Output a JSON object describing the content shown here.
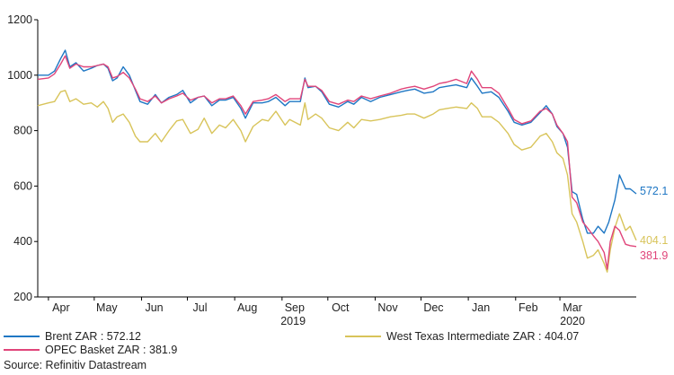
{
  "chart_data": {
    "type": "line",
    "ylim": [
      200,
      1200
    ],
    "yticks": [
      200,
      400,
      600,
      800,
      1000,
      1200
    ],
    "grid": false,
    "x_range": [
      "2019-03-25",
      "2020-04-20"
    ],
    "month_ticks": [
      {
        "label": "Apr",
        "date": "2019-04-01"
      },
      {
        "label": "May",
        "date": "2019-05-01"
      },
      {
        "label": "Jun",
        "date": "2019-06-01"
      },
      {
        "label": "Jul",
        "date": "2019-07-01"
      },
      {
        "label": "Aug",
        "date": "2019-08-01"
      },
      {
        "label": "Sep",
        "date": "2019-09-01"
      },
      {
        "label": "Oct",
        "date": "2019-10-01"
      },
      {
        "label": "Nov",
        "date": "2019-11-01"
      },
      {
        "label": "Dec",
        "date": "2019-12-01"
      },
      {
        "label": "Jan",
        "date": "2020-01-01"
      },
      {
        "label": "Feb",
        "date": "2020-02-01"
      },
      {
        "label": "Mar",
        "date": "2020-03-01"
      }
    ],
    "year_labels": [
      {
        "label": "2019",
        "date": "2019-08-31"
      },
      {
        "label": "2020",
        "date": "2020-03-01"
      }
    ],
    "series": [
      {
        "name": "Brent ZAR : 572.12",
        "end_label": "572.1",
        "color": "#1f77c4",
        "points": [
          [
            "2019-03-25",
            1000
          ],
          [
            "2019-04-01",
            1000
          ],
          [
            "2019-04-05",
            1015
          ],
          [
            "2019-04-09",
            1060
          ],
          [
            "2019-04-12",
            1090
          ],
          [
            "2019-04-15",
            1030
          ],
          [
            "2019-04-19",
            1045
          ],
          [
            "2019-04-24",
            1015
          ],
          [
            "2019-04-29",
            1025
          ],
          [
            "2019-05-03",
            1035
          ],
          [
            "2019-05-07",
            1040
          ],
          [
            "2019-05-10",
            1025
          ],
          [
            "2019-05-13",
            980
          ],
          [
            "2019-05-16",
            990
          ],
          [
            "2019-05-20",
            1030
          ],
          [
            "2019-05-24",
            1000
          ],
          [
            "2019-05-28",
            945
          ],
          [
            "2019-05-31",
            905
          ],
          [
            "2019-06-05",
            895
          ],
          [
            "2019-06-10",
            930
          ],
          [
            "2019-06-14",
            900
          ],
          [
            "2019-06-19",
            920
          ],
          [
            "2019-06-24",
            930
          ],
          [
            "2019-06-28",
            945
          ],
          [
            "2019-07-03",
            900
          ],
          [
            "2019-07-08",
            920
          ],
          [
            "2019-07-12",
            925
          ],
          [
            "2019-07-17",
            890
          ],
          [
            "2019-07-22",
            910
          ],
          [
            "2019-07-26",
            910
          ],
          [
            "2019-07-31",
            920
          ],
          [
            "2019-08-05",
            880
          ],
          [
            "2019-08-08",
            845
          ],
          [
            "2019-08-13",
            900
          ],
          [
            "2019-08-19",
            900
          ],
          [
            "2019-08-23",
            905
          ],
          [
            "2019-08-28",
            920
          ],
          [
            "2019-09-03",
            890
          ],
          [
            "2019-09-06",
            905
          ],
          [
            "2019-09-13",
            905
          ],
          [
            "2019-09-16",
            990
          ],
          [
            "2019-09-18",
            955
          ],
          [
            "2019-09-23",
            960
          ],
          [
            "2019-09-27",
            940
          ],
          [
            "2019-10-02",
            895
          ],
          [
            "2019-10-08",
            885
          ],
          [
            "2019-10-14",
            905
          ],
          [
            "2019-10-18",
            895
          ],
          [
            "2019-10-23",
            920
          ],
          [
            "2019-10-29",
            905
          ],
          [
            "2019-11-04",
            920
          ],
          [
            "2019-11-11",
            930
          ],
          [
            "2019-11-18",
            940
          ],
          [
            "2019-11-22",
            945
          ],
          [
            "2019-11-27",
            950
          ],
          [
            "2019-12-03",
            935
          ],
          [
            "2019-12-09",
            940
          ],
          [
            "2019-12-13",
            955
          ],
          [
            "2019-12-18",
            960
          ],
          [
            "2019-12-24",
            965
          ],
          [
            "2019-12-31",
            955
          ],
          [
            "2020-01-03",
            990
          ],
          [
            "2020-01-07",
            960
          ],
          [
            "2020-01-10",
            935
          ],
          [
            "2020-01-16",
            940
          ],
          [
            "2020-01-21",
            920
          ],
          [
            "2020-01-27",
            870
          ],
          [
            "2020-01-31",
            830
          ],
          [
            "2020-02-05",
            820
          ],
          [
            "2020-02-11",
            830
          ],
          [
            "2020-02-17",
            865
          ],
          [
            "2020-02-21",
            890
          ],
          [
            "2020-02-25",
            860
          ],
          [
            "2020-02-28",
            815
          ],
          [
            "2020-03-03",
            790
          ],
          [
            "2020-03-06",
            740
          ],
          [
            "2020-03-09",
            580
          ],
          [
            "2020-03-12",
            570
          ],
          [
            "2020-03-16",
            480
          ],
          [
            "2020-03-19",
            430
          ],
          [
            "2020-03-23",
            430
          ],
          [
            "2020-03-26",
            455
          ],
          [
            "2020-03-30",
            430
          ],
          [
            "2020-04-02",
            470
          ],
          [
            "2020-04-06",
            550
          ],
          [
            "2020-04-09",
            640
          ],
          [
            "2020-04-13",
            590
          ],
          [
            "2020-04-16",
            590
          ],
          [
            "2020-04-20",
            572.12
          ]
        ]
      },
      {
        "name": "OPEC Basket ZAR : 381.9",
        "end_label": "381.9",
        "color": "#e0457a",
        "points": [
          [
            "2019-03-25",
            985
          ],
          [
            "2019-04-01",
            990
          ],
          [
            "2019-04-05",
            1005
          ],
          [
            "2019-04-09",
            1040
          ],
          [
            "2019-04-12",
            1070
          ],
          [
            "2019-04-15",
            1025
          ],
          [
            "2019-04-19",
            1040
          ],
          [
            "2019-04-24",
            1030
          ],
          [
            "2019-04-29",
            1030
          ],
          [
            "2019-05-03",
            1035
          ],
          [
            "2019-05-07",
            1040
          ],
          [
            "2019-05-10",
            1030
          ],
          [
            "2019-05-13",
            990
          ],
          [
            "2019-05-16",
            995
          ],
          [
            "2019-05-20",
            1010
          ],
          [
            "2019-05-24",
            990
          ],
          [
            "2019-05-28",
            950
          ],
          [
            "2019-05-31",
            915
          ],
          [
            "2019-06-05",
            905
          ],
          [
            "2019-06-10",
            925
          ],
          [
            "2019-06-14",
            900
          ],
          [
            "2019-06-19",
            915
          ],
          [
            "2019-06-24",
            925
          ],
          [
            "2019-06-28",
            935
          ],
          [
            "2019-07-03",
            910
          ],
          [
            "2019-07-08",
            920
          ],
          [
            "2019-07-12",
            925
          ],
          [
            "2019-07-17",
            900
          ],
          [
            "2019-07-22",
            915
          ],
          [
            "2019-07-26",
            915
          ],
          [
            "2019-07-31",
            925
          ],
          [
            "2019-08-05",
            890
          ],
          [
            "2019-08-08",
            860
          ],
          [
            "2019-08-13",
            905
          ],
          [
            "2019-08-19",
            910
          ],
          [
            "2019-08-23",
            915
          ],
          [
            "2019-08-28",
            930
          ],
          [
            "2019-09-03",
            905
          ],
          [
            "2019-09-06",
            915
          ],
          [
            "2019-09-13",
            915
          ],
          [
            "2019-09-16",
            985
          ],
          [
            "2019-09-18",
            960
          ],
          [
            "2019-09-23",
            960
          ],
          [
            "2019-09-27",
            945
          ],
          [
            "2019-10-02",
            905
          ],
          [
            "2019-10-08",
            895
          ],
          [
            "2019-10-14",
            910
          ],
          [
            "2019-10-18",
            905
          ],
          [
            "2019-10-23",
            925
          ],
          [
            "2019-10-29",
            915
          ],
          [
            "2019-11-04",
            925
          ],
          [
            "2019-11-11",
            935
          ],
          [
            "2019-11-18",
            950
          ],
          [
            "2019-11-22",
            955
          ],
          [
            "2019-11-27",
            960
          ],
          [
            "2019-12-03",
            950
          ],
          [
            "2019-12-09",
            960
          ],
          [
            "2019-12-13",
            970
          ],
          [
            "2019-12-18",
            975
          ],
          [
            "2019-12-24",
            985
          ],
          [
            "2019-12-31",
            970
          ],
          [
            "2020-01-03",
            1015
          ],
          [
            "2020-01-07",
            985
          ],
          [
            "2020-01-10",
            955
          ],
          [
            "2020-01-16",
            955
          ],
          [
            "2020-01-21",
            935
          ],
          [
            "2020-01-27",
            880
          ],
          [
            "2020-01-31",
            840
          ],
          [
            "2020-02-05",
            825
          ],
          [
            "2020-02-11",
            835
          ],
          [
            "2020-02-17",
            870
          ],
          [
            "2020-02-21",
            880
          ],
          [
            "2020-02-25",
            860
          ],
          [
            "2020-02-28",
            820
          ],
          [
            "2020-03-03",
            790
          ],
          [
            "2020-03-06",
            760
          ],
          [
            "2020-03-09",
            560
          ],
          [
            "2020-03-12",
            540
          ],
          [
            "2020-03-16",
            470
          ],
          [
            "2020-03-19",
            450
          ],
          [
            "2020-03-23",
            420
          ],
          [
            "2020-03-26",
            400
          ],
          [
            "2020-03-30",
            360
          ],
          [
            "2020-04-01",
            300
          ],
          [
            "2020-04-03",
            400
          ],
          [
            "2020-04-06",
            455
          ],
          [
            "2020-04-09",
            440
          ],
          [
            "2020-04-13",
            390
          ],
          [
            "2020-04-16",
            385
          ],
          [
            "2020-04-20",
            381.9
          ]
        ]
      },
      {
        "name": "West Texas Intermediate ZAR : 404.07",
        "end_label": "404.1",
        "color": "#d8c45a",
        "points": [
          [
            "2019-03-25",
            890
          ],
          [
            "2019-04-01",
            900
          ],
          [
            "2019-04-05",
            905
          ],
          [
            "2019-04-09",
            940
          ],
          [
            "2019-04-12",
            945
          ],
          [
            "2019-04-15",
            905
          ],
          [
            "2019-04-19",
            915
          ],
          [
            "2019-04-24",
            895
          ],
          [
            "2019-04-29",
            900
          ],
          [
            "2019-05-03",
            885
          ],
          [
            "2019-05-07",
            905
          ],
          [
            "2019-05-10",
            880
          ],
          [
            "2019-05-13",
            830
          ],
          [
            "2019-05-16",
            850
          ],
          [
            "2019-05-20",
            860
          ],
          [
            "2019-05-24",
            830
          ],
          [
            "2019-05-28",
            780
          ],
          [
            "2019-05-31",
            760
          ],
          [
            "2019-06-05",
            760
          ],
          [
            "2019-06-10",
            790
          ],
          [
            "2019-06-14",
            760
          ],
          [
            "2019-06-19",
            800
          ],
          [
            "2019-06-24",
            835
          ],
          [
            "2019-06-28",
            840
          ],
          [
            "2019-07-03",
            790
          ],
          [
            "2019-07-08",
            805
          ],
          [
            "2019-07-12",
            845
          ],
          [
            "2019-07-17",
            790
          ],
          [
            "2019-07-22",
            820
          ],
          [
            "2019-07-26",
            810
          ],
          [
            "2019-07-31",
            840
          ],
          [
            "2019-08-05",
            800
          ],
          [
            "2019-08-08",
            760
          ],
          [
            "2019-08-13",
            815
          ],
          [
            "2019-08-19",
            840
          ],
          [
            "2019-08-23",
            835
          ],
          [
            "2019-08-28",
            870
          ],
          [
            "2019-09-03",
            820
          ],
          [
            "2019-09-06",
            840
          ],
          [
            "2019-09-13",
            820
          ],
          [
            "2019-09-16",
            900
          ],
          [
            "2019-09-18",
            840
          ],
          [
            "2019-09-23",
            860
          ],
          [
            "2019-09-27",
            845
          ],
          [
            "2019-10-02",
            810
          ],
          [
            "2019-10-08",
            800
          ],
          [
            "2019-10-14",
            830
          ],
          [
            "2019-10-18",
            810
          ],
          [
            "2019-10-23",
            840
          ],
          [
            "2019-10-29",
            835
          ],
          [
            "2019-11-04",
            840
          ],
          [
            "2019-11-11",
            850
          ],
          [
            "2019-11-18",
            855
          ],
          [
            "2019-11-22",
            860
          ],
          [
            "2019-11-27",
            860
          ],
          [
            "2019-12-03",
            845
          ],
          [
            "2019-12-09",
            860
          ],
          [
            "2019-12-13",
            875
          ],
          [
            "2019-12-18",
            880
          ],
          [
            "2019-12-24",
            885
          ],
          [
            "2019-12-31",
            880
          ],
          [
            "2020-01-03",
            900
          ],
          [
            "2020-01-07",
            880
          ],
          [
            "2020-01-10",
            850
          ],
          [
            "2020-01-16",
            850
          ],
          [
            "2020-01-21",
            830
          ],
          [
            "2020-01-27",
            790
          ],
          [
            "2020-01-31",
            750
          ],
          [
            "2020-02-05",
            730
          ],
          [
            "2020-02-11",
            740
          ],
          [
            "2020-02-17",
            780
          ],
          [
            "2020-02-21",
            790
          ],
          [
            "2020-02-25",
            760
          ],
          [
            "2020-02-28",
            720
          ],
          [
            "2020-03-03",
            700
          ],
          [
            "2020-03-06",
            640
          ],
          [
            "2020-03-09",
            500
          ],
          [
            "2020-03-12",
            470
          ],
          [
            "2020-03-16",
            400
          ],
          [
            "2020-03-19",
            340
          ],
          [
            "2020-03-23",
            350
          ],
          [
            "2020-03-26",
            370
          ],
          [
            "2020-03-30",
            320
          ],
          [
            "2020-04-01",
            290
          ],
          [
            "2020-04-03",
            370
          ],
          [
            "2020-04-06",
            450
          ],
          [
            "2020-04-09",
            500
          ],
          [
            "2020-04-13",
            440
          ],
          [
            "2020-04-16",
            455
          ],
          [
            "2020-04-20",
            404.07
          ]
        ]
      }
    ]
  },
  "source": "Source: Refinitiv Datastream"
}
